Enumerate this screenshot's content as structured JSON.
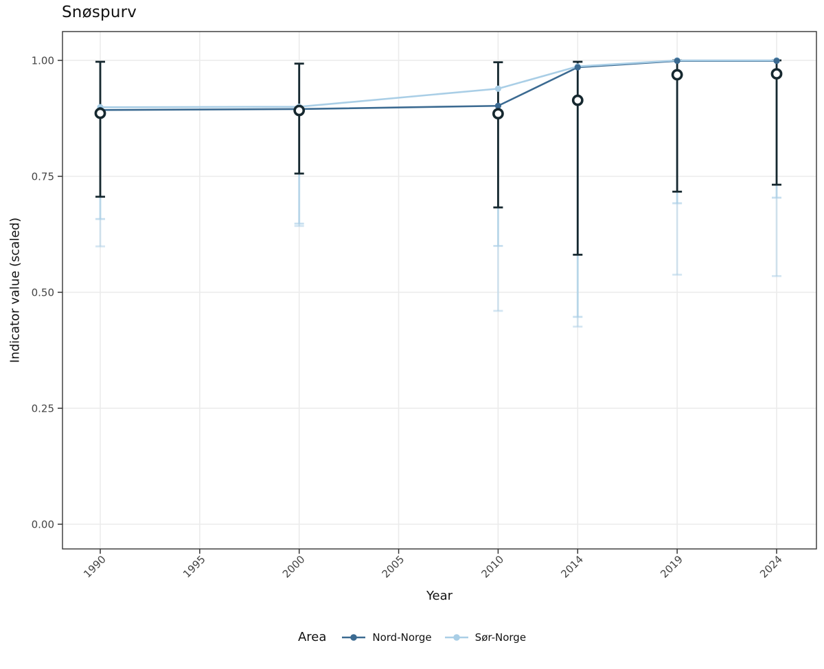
{
  "title": "Snøspurv",
  "axes": {
    "x_label": "Year",
    "y_label": "Indicator value (scaled)",
    "x_tick_labels": [
      "1990",
      "1995",
      "2000",
      "2005",
      "2010",
      "2014",
      "2019",
      "2024"
    ],
    "y_tick_labels": [
      "0.00",
      "0.25",
      "0.50",
      "0.75",
      "1.00"
    ]
  },
  "legend": {
    "title": "Area",
    "entries": [
      {
        "label": "Nord-Norge",
        "color": "#3b6a91"
      },
      {
        "label": "Sør-Norge",
        "color": "#a9cee6"
      }
    ]
  },
  "colors": {
    "nord_norge": "#3b6a91",
    "sor_norge": "#a9cee6",
    "black_marks": "#16282f",
    "gridline": "#ebebeb",
    "panel_border": "#333333",
    "tick_text": "#444444",
    "background": "#ffffff"
  },
  "chart_data": {
    "type": "line",
    "title": "Snøspurv",
    "xlabel": "Year",
    "ylabel": "Indicator value (scaled)",
    "xlim": [
      1988.1,
      2026.0
    ],
    "ylim": [
      -0.05,
      1.06
    ],
    "x_ticks": [
      1990,
      1995,
      2000,
      2005,
      2010,
      2014,
      2019,
      2024
    ],
    "y_ticks": [
      0.0,
      0.25,
      0.5,
      0.75,
      1.0
    ],
    "grid": "major gridlines only, light gray on white, dark panel border",
    "legend_position": "bottom",
    "legend_title": "Area",
    "data_years": [
      1990,
      2000,
      2010,
      2014,
      2019,
      2024
    ],
    "series": [
      {
        "name": "Nord-Norge",
        "color": "#3b6a91",
        "line_values": [
          0.893,
          0.895,
          0.902,
          0.985,
          0.999,
          0.999
        ]
      },
      {
        "name": "Sør-Norge",
        "color": "#a9cee6",
        "line_values": [
          0.899,
          0.9,
          0.939,
          0.987,
          1.0,
          1.0
        ]
      }
    ],
    "open_circle_points": {
      "description": "white-filled open circles with opaque dark error bars (capped)",
      "values": [
        0.886,
        0.892,
        0.885,
        0.914,
        0.969,
        0.971
      ],
      "err_low": [
        0.706,
        0.756,
        0.683,
        0.581,
        0.717,
        0.732
      ],
      "err_high": [
        0.997,
        0.993,
        0.996,
        0.997,
        1.0,
        1.0
      ]
    },
    "shaded_errorbars": {
      "description": "two overlapping translucent light-blue error bars per year, tops hidden behind dark bars; caps at lower ends",
      "color": "#a9cee6",
      "upper_cap_values": [
        0.658,
        0.648,
        0.6,
        0.447,
        0.692,
        0.704
      ],
      "lower_cap_values": [
        0.599,
        0.643,
        0.46,
        0.426,
        0.538,
        0.535
      ]
    }
  }
}
